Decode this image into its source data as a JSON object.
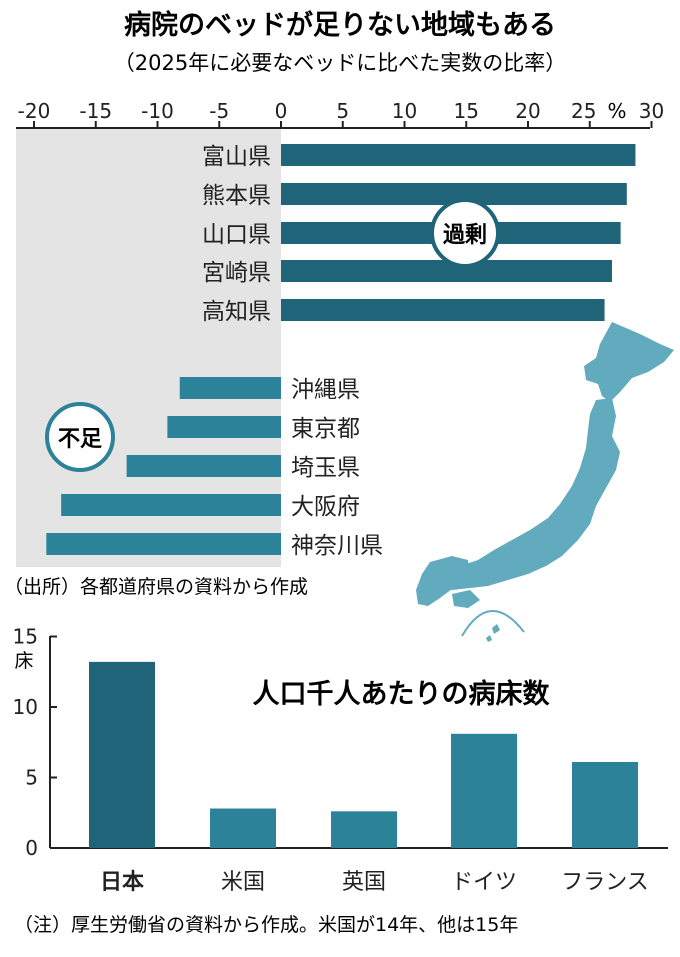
{
  "colors": {
    "surplus_bar": "#1f6478",
    "shortage_bar": "#2b8299",
    "bed_highlight": "#1f6478",
    "bed_other": "#2b8299",
    "map": "#62aabd",
    "shade": "#e4e4e4",
    "text": "#222222"
  },
  "header": {
    "title": "病院のベッドが足りない地域もある",
    "subtitle": "（2025年に必要なベッドに比べた実数の比率）"
  },
  "chart_data": [
    {
      "type": "bar",
      "orientation": "horizontal",
      "x_axis_range": [
        -20,
        30
      ],
      "x_ticks": [
        "-20",
        "-15",
        "-10",
        "-5",
        "0",
        "5",
        "10",
        "15",
        "20",
        "25",
        "30"
      ],
      "unit_label": "%",
      "categories": [
        "富山県",
        "熊本県",
        "山口県",
        "宮崎県",
        "高知県",
        "沖縄県",
        "東京都",
        "埼玉県",
        "大阪府",
        "神奈川県"
      ],
      "values": [
        28.7,
        28.0,
        27.5,
        26.8,
        26.2,
        -8.2,
        -9.2,
        -12.5,
        -17.8,
        -19.0
      ],
      "annotations": {
        "surplus": "過剰",
        "shortage": "不足"
      },
      "source": "（出所）各都道府県の資料から作成"
    },
    {
      "type": "bar",
      "title": "人口千人あたりの病床数",
      "y_unit": "床",
      "y_axis_range": [
        0,
        15
      ],
      "y_ticks": [
        "0",
        "5",
        "10",
        "15"
      ],
      "categories": [
        "日本",
        "米国",
        "英国",
        "ドイツ",
        "フランス"
      ],
      "values": [
        13.2,
        2.8,
        2.6,
        8.1,
        6.1
      ],
      "note": "（注）厚生労働省の資料から作成。米国が14年、他は15年"
    }
  ]
}
